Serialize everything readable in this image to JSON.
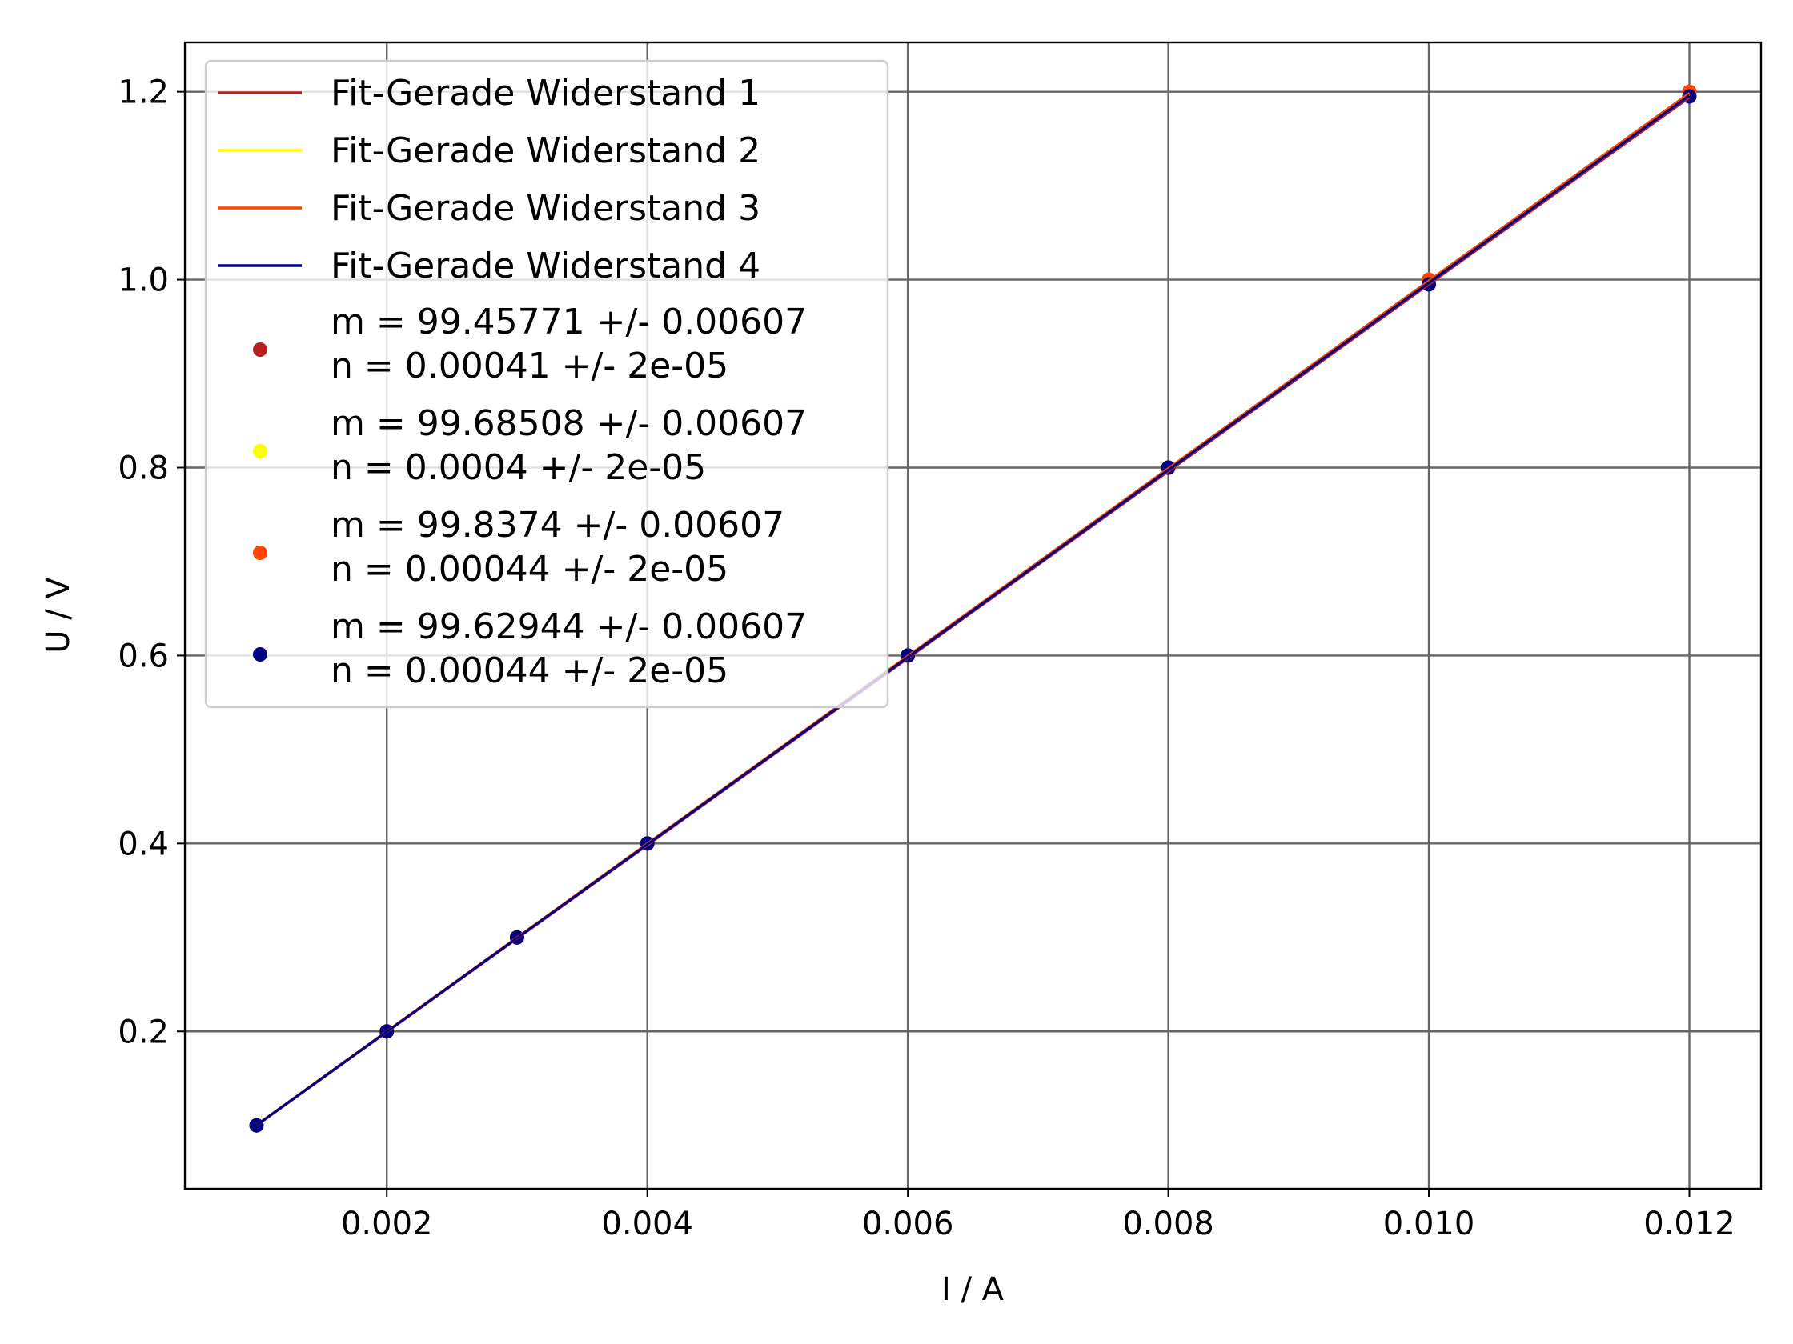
{
  "chart_data": {
    "type": "line",
    "xlabel": "I / A",
    "ylabel": "U / V",
    "xlim": [
      0.00045,
      0.01255
    ],
    "ylim": [
      0.0325,
      1.2525
    ],
    "xticks": [
      "0.002",
      "0.004",
      "0.006",
      "0.008",
      "0.010",
      "0.012"
    ],
    "yticks": [
      "0.2",
      "0.4",
      "0.6",
      "0.8",
      "1.0",
      "1.2"
    ],
    "grid": true,
    "legend_position": "upper-left",
    "x": [
      0.001,
      0.002,
      0.003,
      0.004,
      0.006,
      0.008,
      0.01,
      0.012
    ],
    "series": [
      {
        "name": "Fit-Gerade Widerstand 1",
        "kind": "line",
        "color": "#b22222",
        "y": [
          0.0999,
          0.1993,
          0.2988,
          0.3982,
          0.5971,
          0.796,
          0.995,
          1.1939
        ]
      },
      {
        "name": "Fit-Gerade Widerstand 2",
        "kind": "line",
        "color": "#ffff00",
        "y": [
          0.1001,
          0.1998,
          0.2995,
          0.3991,
          0.5985,
          0.7979,
          0.9973,
          1.1966
        ]
      },
      {
        "name": "Fit-Gerade Widerstand 3",
        "kind": "line",
        "color": "#ff4500",
        "y": [
          0.1003,
          0.2001,
          0.2999,
          0.3998,
          0.5995,
          0.7991,
          0.9988,
          1.1985
        ]
      },
      {
        "name": "Fit-Gerade Widerstand 4",
        "kind": "line",
        "color": "#000080",
        "y": [
          0.1001,
          0.1997,
          0.2993,
          0.399,
          0.5982,
          0.7975,
          0.9967,
          1.196
        ]
      },
      {
        "name": "m = 99.45771 +/- 0.00607\nn = 0.00041 +/- 2e-05",
        "kind": "points",
        "color": "#b22222",
        "y": [
          0.1,
          0.2,
          0.3,
          0.4,
          0.6,
          0.8,
          1.0,
          1.2
        ]
      },
      {
        "name": "m = 99.68508 +/- 0.00607\nn = 0.0004 +/- 2e-05",
        "kind": "points",
        "color": "#ffff00",
        "y": [
          0.1,
          0.2,
          0.3,
          0.4,
          0.6,
          0.8,
          1.0,
          1.2
        ]
      },
      {
        "name": "m = 99.8374 +/- 0.00607\nn = 0.00044 +/- 2e-05",
        "kind": "points",
        "color": "#ff4500",
        "y": [
          0.1,
          0.2,
          0.3,
          0.4,
          0.6,
          0.8,
          1.0,
          1.2
        ]
      },
      {
        "name": "m = 99.62944 +/- 0.00607\nn = 0.00044 +/- 2e-05",
        "kind": "points",
        "color": "#000080",
        "y": [
          0.1,
          0.2,
          0.3,
          0.4,
          0.6,
          0.8,
          0.995,
          1.195
        ]
      }
    ]
  }
}
